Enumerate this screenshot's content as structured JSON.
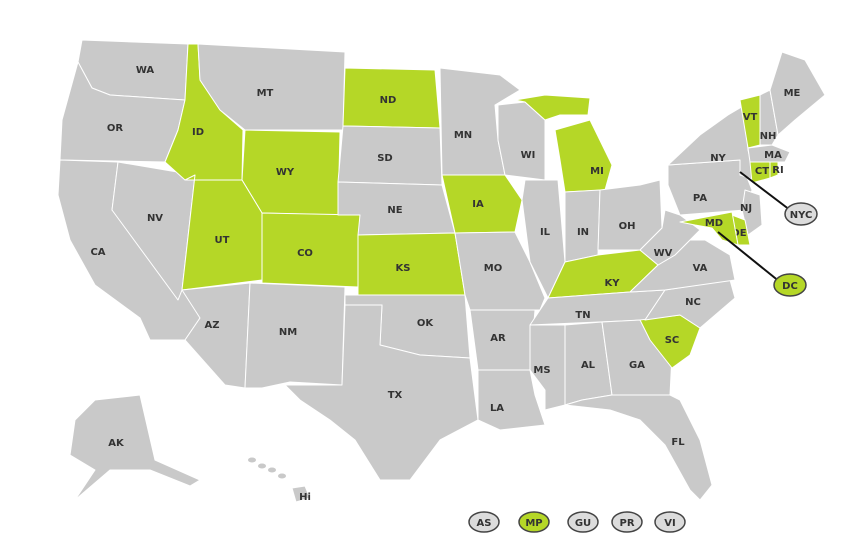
{
  "colors": {
    "highlight": "#b5d727",
    "default": "#c9c9c9",
    "border": "#ffffff"
  },
  "states": [
    {
      "code": "WA",
      "highlighted": false
    },
    {
      "code": "OR",
      "highlighted": false
    },
    {
      "code": "CA",
      "highlighted": false
    },
    {
      "code": "NV",
      "highlighted": false
    },
    {
      "code": "ID",
      "highlighted": true
    },
    {
      "code": "MT",
      "highlighted": false
    },
    {
      "code": "WY",
      "highlighted": true
    },
    {
      "code": "UT",
      "highlighted": true
    },
    {
      "code": "AZ",
      "highlighted": false
    },
    {
      "code": "CO",
      "highlighted": true
    },
    {
      "code": "NM",
      "highlighted": false
    },
    {
      "code": "ND",
      "highlighted": true
    },
    {
      "code": "SD",
      "highlighted": false
    },
    {
      "code": "NE",
      "highlighted": false
    },
    {
      "code": "KS",
      "highlighted": true
    },
    {
      "code": "OK",
      "highlighted": false
    },
    {
      "code": "TX",
      "highlighted": false
    },
    {
      "code": "MN",
      "highlighted": false
    },
    {
      "code": "IA",
      "highlighted": true
    },
    {
      "code": "MO",
      "highlighted": false
    },
    {
      "code": "AR",
      "highlighted": false
    },
    {
      "code": "LA",
      "highlighted": false
    },
    {
      "code": "WI",
      "highlighted": false
    },
    {
      "code": "IL",
      "highlighted": false
    },
    {
      "code": "MI",
      "highlighted": true
    },
    {
      "code": "IN",
      "highlighted": false
    },
    {
      "code": "OH",
      "highlighted": false
    },
    {
      "code": "KY",
      "highlighted": true
    },
    {
      "code": "TN",
      "highlighted": false
    },
    {
      "code": "MS",
      "highlighted": false
    },
    {
      "code": "AL",
      "highlighted": false
    },
    {
      "code": "GA",
      "highlighted": false
    },
    {
      "code": "FL",
      "highlighted": false
    },
    {
      "code": "SC",
      "highlighted": true
    },
    {
      "code": "NC",
      "highlighted": false
    },
    {
      "code": "VA",
      "highlighted": false
    },
    {
      "code": "WV",
      "highlighted": false
    },
    {
      "code": "PA",
      "highlighted": false
    },
    {
      "code": "NY",
      "highlighted": false
    },
    {
      "code": "VT",
      "highlighted": true
    },
    {
      "code": "NH",
      "highlighted": false
    },
    {
      "code": "ME",
      "highlighted": false
    },
    {
      "code": "MA",
      "highlighted": false
    },
    {
      "code": "CT",
      "highlighted": true
    },
    {
      "code": "RI",
      "highlighted": true
    },
    {
      "code": "NJ",
      "highlighted": false
    },
    {
      "code": "DE",
      "highlighted": true
    },
    {
      "code": "MD",
      "highlighted": true
    },
    {
      "code": "AK",
      "highlighted": false
    },
    {
      "code": "Hi",
      "highlighted": false
    }
  ],
  "callouts": [
    {
      "code": "NYC",
      "highlighted": false
    },
    {
      "code": "DC",
      "highlighted": true
    }
  ],
  "territories": [
    {
      "code": "AS",
      "highlighted": false
    },
    {
      "code": "MP",
      "highlighted": true
    },
    {
      "code": "GU",
      "highlighted": false
    },
    {
      "code": "PR",
      "highlighted": false
    },
    {
      "code": "VI",
      "highlighted": false
    }
  ]
}
